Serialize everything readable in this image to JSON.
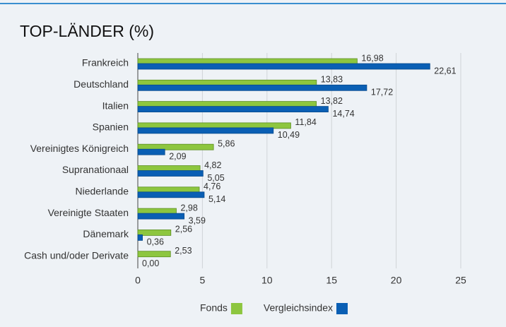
{
  "chart_data": {
    "type": "hbar",
    "title": "TOP-LÄNDER (%)",
    "categories": [
      "Frankreich",
      "Deutschland",
      "Italien",
      "Spanien",
      "Vereinigtes Königreich",
      "Supranationaal",
      "Niederlande",
      "Vereinigte Staaten",
      "Dänemark",
      "Cash und/oder Derivate"
    ],
    "series": [
      {
        "name": "Fonds",
        "color": "#8dc63f",
        "values": [
          16.98,
          13.83,
          13.82,
          11.84,
          5.86,
          4.82,
          4.76,
          2.98,
          2.56,
          2.53
        ],
        "value_labels": [
          "16,98",
          "13,83",
          "13,82",
          "11,84",
          "5,86",
          "4,82",
          "4,76",
          "2,98",
          "2,56",
          "2,53"
        ]
      },
      {
        "name": "Vergleichsindex",
        "color": "#0a5fb4",
        "values": [
          22.61,
          17.72,
          14.74,
          10.49,
          2.09,
          5.05,
          5.14,
          3.59,
          0.36,
          0.0
        ],
        "value_labels": [
          "22,61",
          "17,72",
          "14,74",
          "10,49",
          "2,09",
          "5,05",
          "5,14",
          "3,59",
          "0,36",
          "0,00"
        ]
      }
    ],
    "xlim": [
      0,
      25
    ],
    "xticks": [
      0,
      5,
      10,
      15,
      20,
      25
    ],
    "grid": true,
    "legend": "bottom"
  }
}
